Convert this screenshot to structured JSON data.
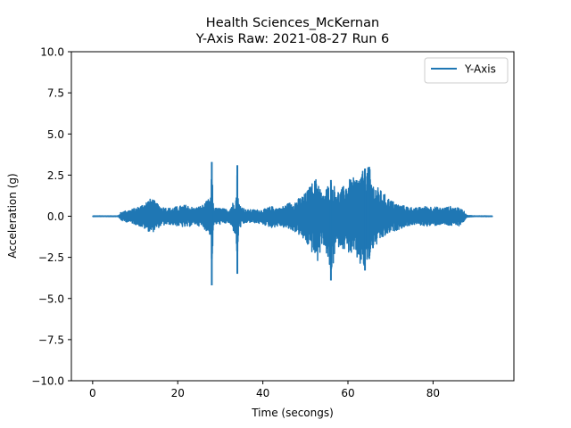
{
  "chart_data": {
    "type": "line",
    "title": "Health Sciences_McKernan",
    "subtitle": "Y-Axis Raw: 2021-08-27 Run 6",
    "xlabel": "Time (secongs)",
    "ylabel": "Acceleration (g)",
    "xlim": [
      -5,
      99
    ],
    "ylim": [
      -10,
      10
    ],
    "x_ticks": [
      0,
      20,
      40,
      60,
      80
    ],
    "x_tick_labels": [
      "0",
      "20",
      "40",
      "60",
      "80"
    ],
    "y_ticks": [
      -10,
      -7.5,
      -5,
      -2.5,
      0,
      2.5,
      5,
      7.5,
      10
    ],
    "y_tick_labels": [
      "−10.0",
      "−7.5",
      "−5.0",
      "−2.5",
      "0.0",
      "2.5",
      "5.0",
      "7.5",
      "10.0"
    ],
    "grid": false,
    "legend_position": "top-right",
    "series": [
      {
        "name": "Y-Axis",
        "color": "#1f77b4",
        "x": [
          0,
          6,
          6.5,
          7,
          9,
          11,
          13,
          14,
          15,
          16,
          18,
          20,
          22,
          24,
          26,
          27.8,
          28,
          28.3,
          28.6,
          30,
          32,
          33.7,
          34,
          34.3,
          36,
          38,
          40,
          42,
          44,
          46,
          48,
          50,
          52,
          53,
          54,
          55,
          56,
          57,
          58,
          60,
          62,
          63,
          64,
          65,
          66,
          68,
          70,
          72,
          74,
          76,
          78,
          80,
          82,
          84,
          86,
          87,
          88,
          90,
          92,
          94
        ],
        "upper": [
          0.02,
          0.02,
          0.2,
          0.3,
          0.4,
          0.6,
          1.0,
          1.1,
          0.8,
          0.6,
          0.5,
          0.6,
          0.7,
          0.5,
          0.7,
          1.2,
          3.3,
          1.0,
          0.5,
          0.5,
          0.4,
          1.2,
          3.1,
          0.8,
          0.4,
          0.4,
          0.4,
          0.6,
          0.5,
          0.8,
          1.0,
          1.4,
          2.2,
          2.4,
          1.2,
          1.8,
          2.2,
          1.8,
          1.5,
          2.2,
          2.4,
          2.6,
          2.9,
          3.0,
          2.0,
          1.5,
          1.0,
          0.7,
          0.6,
          0.5,
          0.6,
          0.6,
          0.5,
          0.6,
          0.5,
          0.4,
          0.05,
          0.02,
          0.02,
          0.02
        ],
        "lower": [
          -0.02,
          -0.02,
          -0.2,
          -0.3,
          -0.4,
          -0.6,
          -0.9,
          -1.0,
          -0.8,
          -0.6,
          -0.5,
          -0.6,
          -0.7,
          -0.5,
          -0.7,
          -1.2,
          -4.2,
          -1.0,
          -0.5,
          -0.5,
          -0.4,
          -1.2,
          -3.5,
          -0.8,
          -0.4,
          -0.4,
          -0.5,
          -0.7,
          -0.6,
          -0.8,
          -1.0,
          -1.6,
          -2.4,
          -2.9,
          -1.5,
          -2.4,
          -3.9,
          -2.2,
          -1.8,
          -2.2,
          -2.6,
          -3.1,
          -3.3,
          -2.6,
          -2.0,
          -1.4,
          -1.0,
          -0.8,
          -0.6,
          -0.5,
          -0.6,
          -0.6,
          -0.5,
          -0.6,
          -0.6,
          -0.4,
          -0.05,
          -0.02,
          -0.02,
          -0.02
        ]
      }
    ]
  }
}
